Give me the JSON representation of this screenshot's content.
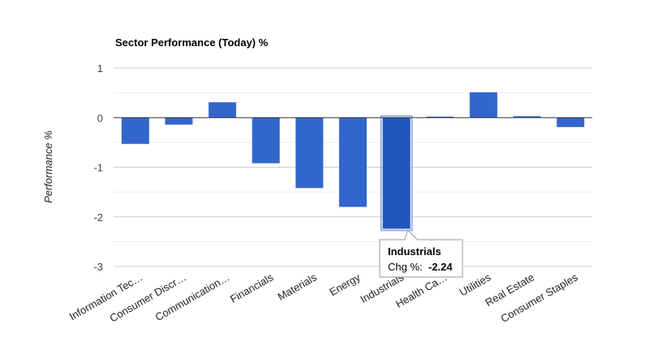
{
  "chart_data": {
    "type": "bar",
    "title": "Sector Performance (Today) %",
    "xlabel": "",
    "ylabel": "Performance %",
    "ylim": [
      -3,
      1
    ],
    "yticks": [
      "1",
      "0",
      "-1",
      "-2",
      "-3"
    ],
    "grid": true,
    "bar_color": "#3366cc",
    "highlight_color": "#2255bb",
    "categories": [
      "Information Tec…",
      "Consumer Discr…",
      "Communication…",
      "Financials",
      "Materials",
      "Energy",
      "Industrials",
      "Health Ca…",
      "Utilities",
      "Real Estate",
      "Consumer Staples"
    ],
    "values": [
      -0.53,
      -0.14,
      0.31,
      -0.92,
      -1.42,
      -1.8,
      -2.24,
      0.02,
      0.51,
      0.03,
      -0.19
    ],
    "tooltip": {
      "category": "Industrials",
      "label": "Chg %:",
      "value": "-2.24"
    }
  }
}
